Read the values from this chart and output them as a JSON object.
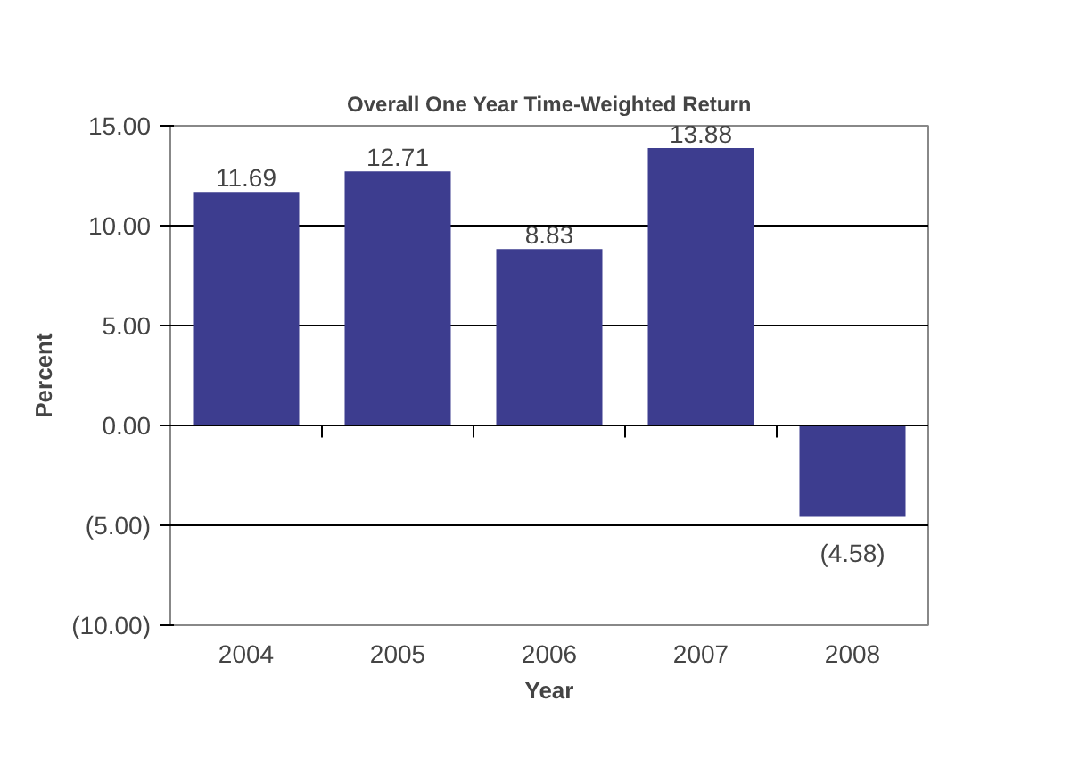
{
  "chart_data": {
    "type": "bar",
    "title": "Overall One Year Time-Weighted Return",
    "xlabel": "Year",
    "ylabel": "Percent",
    "categories": [
      "2004",
      "2005",
      "2006",
      "2007",
      "2008"
    ],
    "values": [
      11.69,
      12.71,
      8.83,
      13.88,
      -4.58
    ],
    "value_labels": [
      "11.69",
      "12.71",
      "8.83",
      "13.88",
      "(4.58)"
    ],
    "color": "#3d3d8f",
    "ylim": [
      -10,
      15
    ],
    "yticks": [
      {
        "value": 15,
        "label": "15.00"
      },
      {
        "value": 10,
        "label": "10.00"
      },
      {
        "value": 5,
        "label": "5.00"
      },
      {
        "value": 0,
        "label": "0.00"
      },
      {
        "value": -5,
        "label": "(5.00)"
      },
      {
        "value": -10,
        "label": "(10.00)"
      }
    ],
    "grid": "y"
  }
}
